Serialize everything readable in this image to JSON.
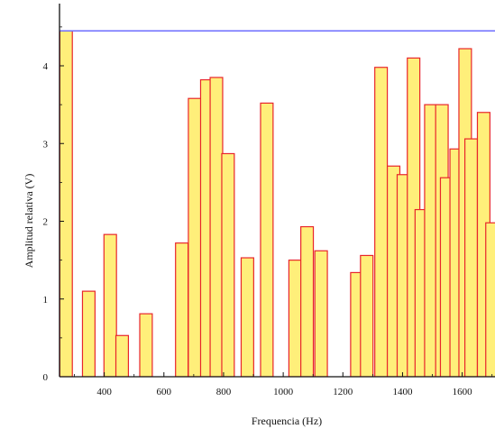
{
  "colors": {
    "bar_fill": "#ffef7a",
    "bar_stroke": "#e8262b",
    "reference_line": "#6d6dff",
    "axis": "#111111"
  },
  "chart_data": {
    "type": "bar",
    "xlabel": "Frequencia (Hz)",
    "ylabel": "Amplitud relativa (V)",
    "xlim": [
      250,
      1710
    ],
    "ylim": [
      0,
      4.8
    ],
    "x_ticks": [
      400,
      600,
      800,
      1000,
      1200,
      1400,
      1600
    ],
    "y_ticks": [
      0,
      1,
      2,
      3,
      4
    ],
    "bar_width": 42,
    "reference_line": {
      "y": 4.45,
      "x_start": 250,
      "x_end": 1710
    },
    "bars": [
      {
        "x": 272,
        "value": 4.45
      },
      {
        "x": 348,
        "value": 1.1
      },
      {
        "x": 420,
        "value": 1.83
      },
      {
        "x": 460,
        "value": 0.53
      },
      {
        "x": 540,
        "value": 0.81
      },
      {
        "x": 660,
        "value": 1.72
      },
      {
        "x": 703,
        "value": 3.58
      },
      {
        "x": 744,
        "value": 3.82
      },
      {
        "x": 776,
        "value": 3.85
      },
      {
        "x": 815,
        "value": 2.87
      },
      {
        "x": 880,
        "value": 1.53
      },
      {
        "x": 945,
        "value": 3.52
      },
      {
        "x": 1040,
        "value": 1.5
      },
      {
        "x": 1080,
        "value": 1.93
      },
      {
        "x": 1127,
        "value": 1.62
      },
      {
        "x": 1247,
        "value": 1.34
      },
      {
        "x": 1280,
        "value": 1.56
      },
      {
        "x": 1328,
        "value": 3.98
      },
      {
        "x": 1370,
        "value": 2.71
      },
      {
        "x": 1403,
        "value": 2.6
      },
      {
        "x": 1437,
        "value": 4.1
      },
      {
        "x": 1463,
        "value": 2.15
      },
      {
        "x": 1495,
        "value": 3.5
      },
      {
        "x": 1532,
        "value": 3.5
      },
      {
        "x": 1548,
        "value": 2.56
      },
      {
        "x": 1580,
        "value": 2.93
      },
      {
        "x": 1610,
        "value": 4.22
      },
      {
        "x": 1630,
        "value": 3.06
      },
      {
        "x": 1672,
        "value": 3.4
      },
      {
        "x": 1700,
        "value": 1.98
      }
    ]
  }
}
